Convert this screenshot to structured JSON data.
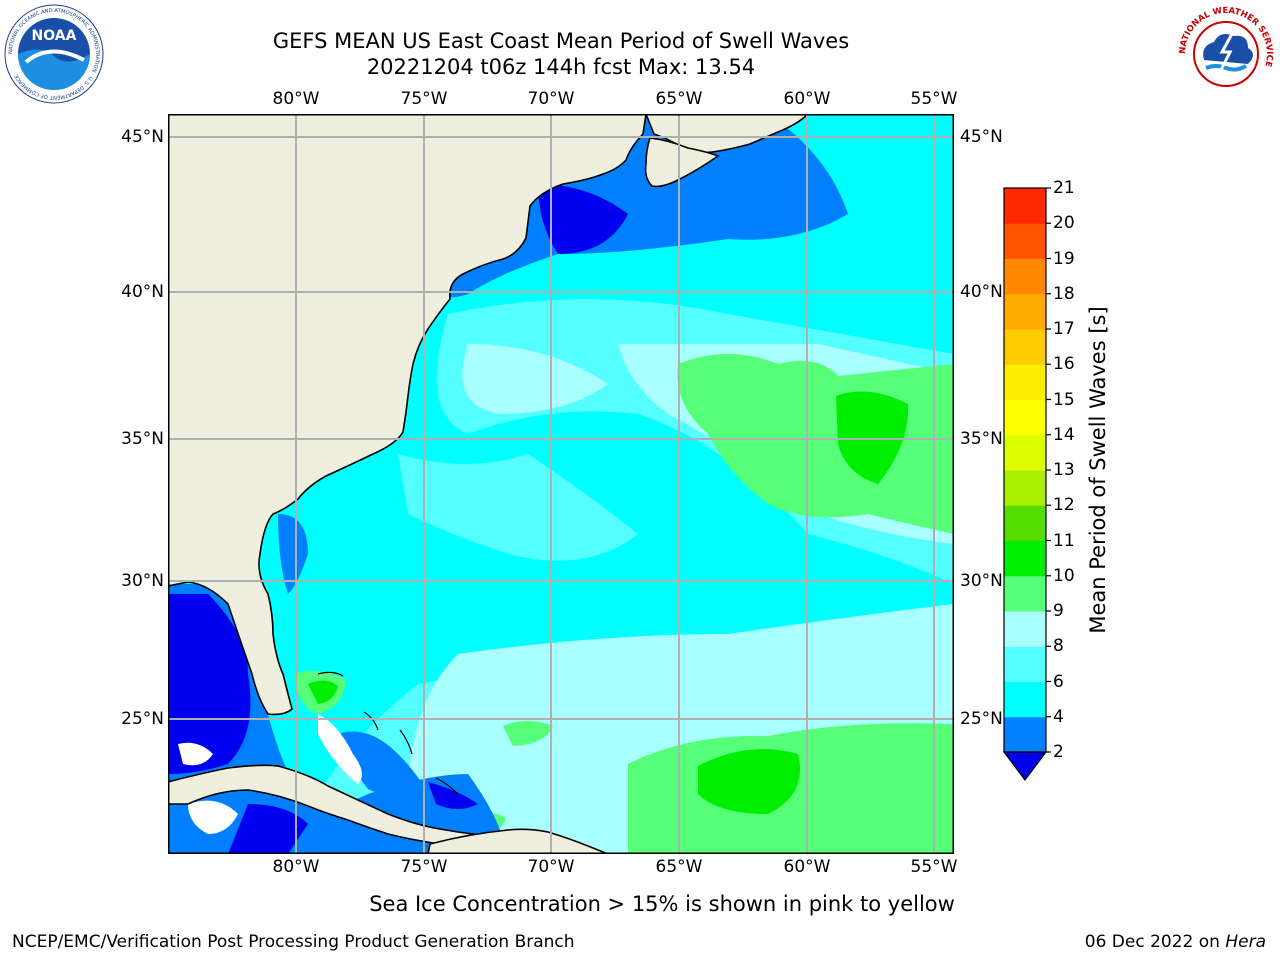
{
  "header": {
    "title_line1": "GEFS MEAN US East Coast Mean Period of Swell Waves",
    "title_line2": "20221204 t06z 144h fcst   Max: 13.54"
  },
  "logos": {
    "left": {
      "icon": "noaa-logo",
      "text": "NOAA",
      "ring_text": "NATIONAL OCEANIC AND ATMOSPHERIC ADMINISTRATION · U.S. DEPARTMENT OF COMMERCE"
    },
    "right": {
      "icon": "nws-logo",
      "ring_text": "NATIONAL WEATHER SERVICE"
    }
  },
  "map": {
    "lon_labels": [
      "80°W",
      "75°W",
      "70°W",
      "65°W",
      "60°W",
      "55°W"
    ],
    "lat_labels": [
      "45°N",
      "40°N",
      "35°N",
      "30°N",
      "25°N"
    ],
    "lon_range": [
      -85,
      -54
    ],
    "lat_range": [
      20.5,
      46
    ],
    "colors": {
      "land": "#efefdf",
      "grid": "#b0b0b0",
      "ocean_4_6": "#00ffff",
      "ocean_6_8": "#55ffff",
      "ocean_8_9": "#aaffff",
      "ocean_2_4": "#0080ff",
      "ocean_lt2": "#0000ee",
      "ocean_9_10": "#55ff77",
      "ocean_10_11": "#00ee00"
    }
  },
  "colorbar": {
    "label": "Mean Period of Swell Waves [s]",
    "ticks": [
      "2",
      "4",
      "6",
      "8",
      "9",
      "10",
      "11",
      "12",
      "13",
      "14",
      "15",
      "16",
      "17",
      "18",
      "19",
      "20",
      "21"
    ],
    "colors": [
      "#0080ff",
      "#00ffff",
      "#55ffff",
      "#aaffff",
      "#55ff77",
      "#00ee00",
      "#55dd00",
      "#aaee00",
      "#ddff00",
      "#ffff00",
      "#ffee00",
      "#ffcc00",
      "#ffaa00",
      "#ff8800",
      "#ff5500",
      "#ff2a00",
      "#ff0000"
    ],
    "under_color": "#0000ee"
  },
  "footer": {
    "note": "Sea Ice Concentration > 15% is shown in pink to yellow",
    "left": "NCEP/EMC/Verification Post Processing Product Generation Branch",
    "date": "06 Dec 2022 on ",
    "machine": "Hera"
  }
}
